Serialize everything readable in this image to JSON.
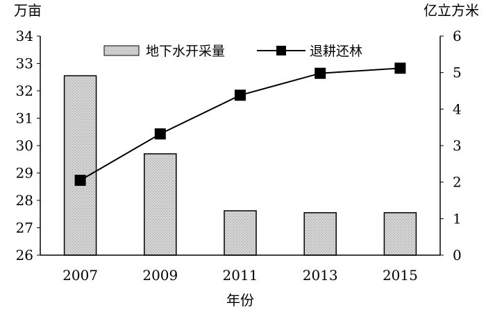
{
  "chart_data": {
    "type": "bar",
    "title": "",
    "xlabel": "年份",
    "categories": [
      "2007",
      "2009",
      "2011",
      "2013",
      "2015"
    ],
    "y_left": {
      "unit": "万亩",
      "ylim": [
        26,
        34
      ],
      "ticks": [
        26,
        27,
        28,
        29,
        30,
        31,
        32,
        33,
        34
      ]
    },
    "y_right": {
      "unit": "亿立方米",
      "ylim": [
        0,
        6
      ],
      "ticks": [
        0,
        1,
        2,
        3,
        4,
        5,
        6
      ]
    },
    "grid": false,
    "legend_position": "top",
    "series": [
      {
        "name": "地下水开采量",
        "type": "bar",
        "axis": "left",
        "values": [
          32.55,
          29.7,
          27.62,
          27.55,
          27.55
        ],
        "color": "#cfcfcf"
      },
      {
        "name": "退耕还林",
        "type": "line",
        "axis": "right",
        "values": [
          2.05,
          3.32,
          4.38,
          4.98,
          5.12
        ],
        "color": "#000000"
      }
    ]
  }
}
